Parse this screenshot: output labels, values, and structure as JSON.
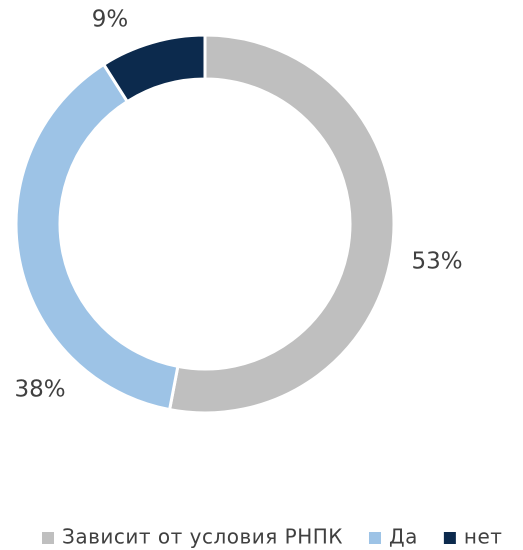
{
  "chart_data": {
    "type": "pie",
    "donut": true,
    "categories": [
      "Зависит от условия РНПК",
      "Да",
      "нет"
    ],
    "values": [
      53,
      38,
      9
    ],
    "value_labels": [
      "53%",
      "38%",
      "9%"
    ],
    "colors": [
      "#bfbfbf",
      "#9dc3e6",
      "#0c2a4d"
    ],
    "legend": "bottom"
  }
}
